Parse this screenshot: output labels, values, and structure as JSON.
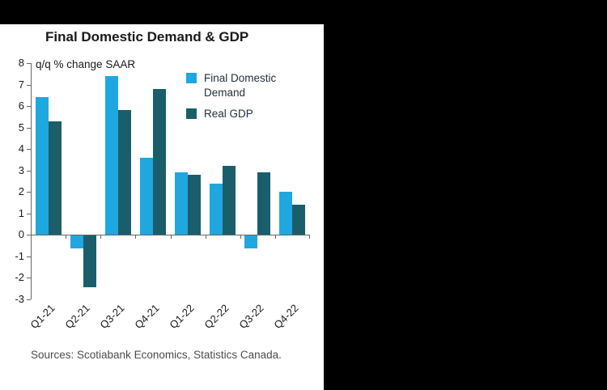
{
  "chart": {
    "title": "Final Domestic Demand & GDP",
    "unit_label": "q/q % change SAAR",
    "source_text": "Sources: Scotiabank Economics, Statistics Canada."
  },
  "chart_data": {
    "type": "bar",
    "title": "Final Domestic Demand & GDP",
    "subtitle": "q/q % change SAAR",
    "categories": [
      "Q1-21",
      "Q2-21",
      "Q3-21",
      "Q4-21",
      "Q1-22",
      "Q2-22",
      "Q3-22",
      "Q4-22"
    ],
    "series": [
      {
        "name": "Final Domestic Demand",
        "color": "#1fa7e0",
        "values": [
          6.4,
          -0.6,
          7.4,
          3.6,
          2.9,
          2.4,
          -0.6,
          2.0
        ]
      },
      {
        "name": "Real GDP",
        "color": "#1b5e6b",
        "values": [
          5.3,
          -2.4,
          5.8,
          6.8,
          2.8,
          3.2,
          2.9,
          1.4
        ]
      }
    ],
    "ylim": [
      -3,
      8
    ],
    "yticks": [
      8,
      7,
      6,
      5,
      4,
      3,
      2,
      1,
      0,
      -1,
      -2,
      -3
    ],
    "grid": false,
    "legend_position": "top-right",
    "axis_color": "#666666",
    "source": "Sources: Scotiabank Economics, Statistics Canada."
  }
}
